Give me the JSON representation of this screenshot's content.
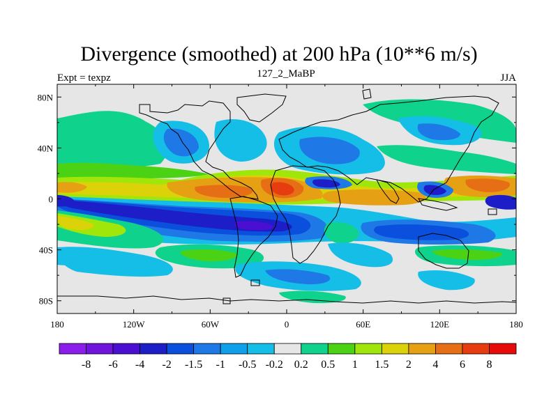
{
  "title": "Divergence (smoothed) at 200 hPa (10**6 m/s)",
  "left_string": "Expt = texpz",
  "center_string": "127_2_MaBP",
  "right_string": "JJA",
  "map": {
    "background_color": "#e6e6e6",
    "coastline_color": "#000000",
    "lon_ticks": [
      "180",
      "120W",
      "60W",
      "0",
      "60E",
      "120E",
      "180"
    ],
    "lat_ticks": [
      "80N",
      "40N",
      "0",
      "40S",
      "80S"
    ],
    "lon_values": [
      -180,
      -120,
      -60,
      0,
      60,
      120,
      180
    ],
    "lat_values": [
      80,
      40,
      0,
      -40,
      -80
    ],
    "lon_range": [
      -180,
      180
    ],
    "lat_range": [
      -90,
      90
    ]
  },
  "colorbar": {
    "labels": [
      "-8",
      "-6",
      "-4",
      "-2",
      "-1.5",
      "-1",
      "-0.5",
      "-0.2",
      "0.2",
      "0.5",
      "1",
      "1.5",
      "2",
      "4",
      "6",
      "8"
    ],
    "colors": [
      "#8c1eeb",
      "#6e14dc",
      "#4b0fd2",
      "#1e1ec8",
      "#0a50dc",
      "#1e78e6",
      "#0fa0eb",
      "#14bee6",
      "#e6e6e6",
      "#0fd28c",
      "#4bd214",
      "#a0e60a",
      "#dcd20a",
      "#e6a014",
      "#e66e14",
      "#e63c0f",
      "#e60a0a"
    ]
  },
  "chart_data": {
    "type": "heatmap",
    "title": "Divergence (smoothed) at 200 hPa (10**6 m/s)",
    "variable": "Divergence (smoothed)",
    "level": "200 hPa",
    "units": "10**6 m/s",
    "experiment": "texpz",
    "run": "127_2_MaBP",
    "season": "JJA",
    "x_ticks": [
      "180",
      "120W",
      "60W",
      "0",
      "60E",
      "120E",
      "180"
    ],
    "y_ticks": [
      "80N",
      "40N",
      "0",
      "40S",
      "80S"
    ],
    "contour_levels": [
      -8,
      -6,
      -4,
      -2,
      -1.5,
      -1,
      -0.5,
      -0.2,
      0.2,
      0.5,
      1,
      1.5,
      2,
      4,
      6,
      8
    ],
    "features": [
      {
        "name": "equatorial divergence band",
        "lon": [
          -80,
          30
        ],
        "lat": [
          0,
          15
        ],
        "value": 4
      },
      {
        "name": "equatorial divergence band",
        "lon": [
          40,
          100
        ],
        "lat": [
          -5,
          5
        ],
        "value": 2
      },
      {
        "name": "western Pacific divergence",
        "lon": [
          140,
          180
        ],
        "lat": [
          5,
          15
        ],
        "value": 4
      },
      {
        "name": "southern tropical convergence",
        "lon": [
          -150,
          0
        ],
        "lat": [
          -25,
          -5
        ],
        "value": -4
      },
      {
        "name": "southern Indian Ocean convergence",
        "lon": [
          70,
          160
        ],
        "lat": [
          -30,
          -15
        ],
        "value": -2
      },
      {
        "name": "dateline convergence",
        "lon": [
          -180,
          -160
        ],
        "lat": [
          -5,
          0
        ],
        "value": -4
      }
    ]
  }
}
